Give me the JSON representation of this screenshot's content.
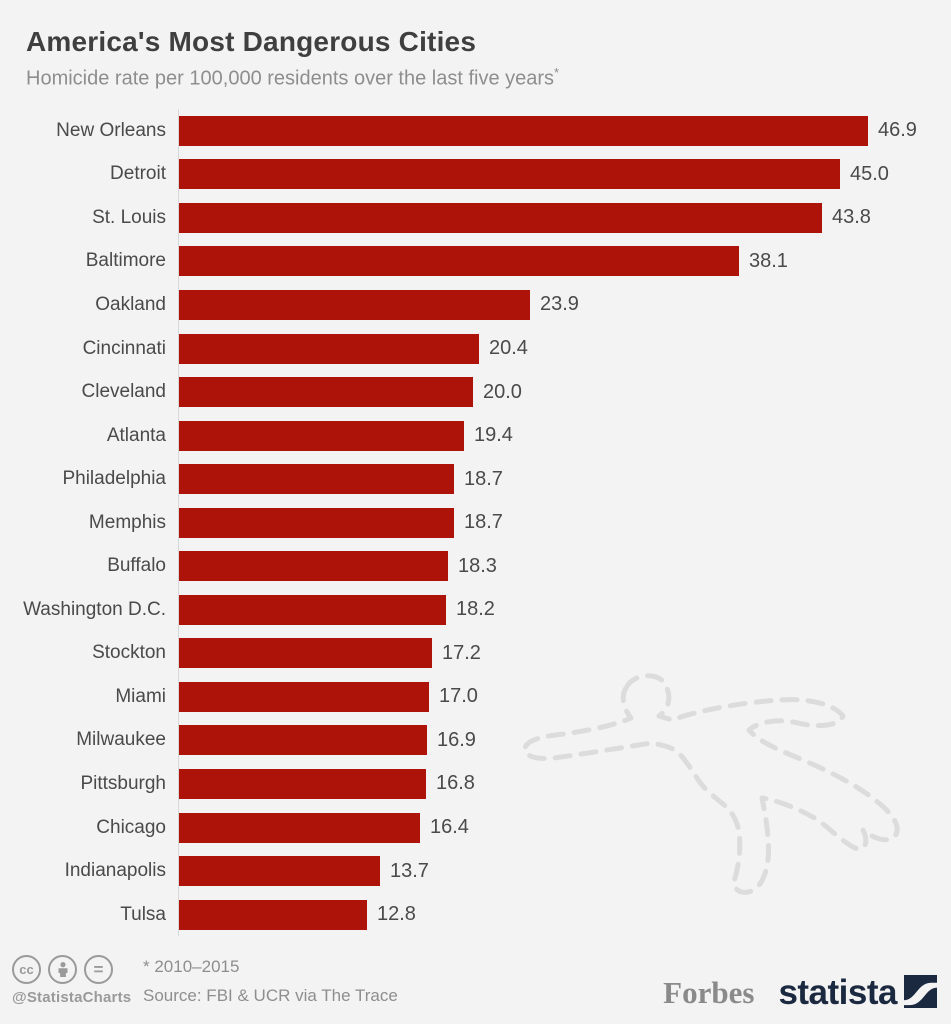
{
  "page": {
    "background": "#f4f3f3"
  },
  "header": {
    "title": "America's Most Dangerous Cities",
    "subtitle": "Homicide rate per 100,000 residents over the last five years",
    "footnote_marker": "*"
  },
  "chart_data": {
    "type": "bar",
    "orientation": "horizontal",
    "title": "America's Most Dangerous Cities",
    "subtitle": "Homicide rate per 100,000 residents over the last five years*",
    "categories": [
      "New Orleans",
      "Detroit",
      "St. Louis",
      "Baltimore",
      "Oakland",
      "Cincinnati",
      "Cleveland",
      "Atlanta",
      "Philadelphia",
      "Memphis",
      "Buffalo",
      "Washington D.C.",
      "Stockton",
      "Miami",
      "Milwaukee",
      "Pittsburgh",
      "Chicago",
      "Indianapolis",
      "Tulsa"
    ],
    "values": [
      46.9,
      45.0,
      43.8,
      38.1,
      23.9,
      20.4,
      20.0,
      19.4,
      18.7,
      18.7,
      18.3,
      18.2,
      17.2,
      17.0,
      16.9,
      16.8,
      16.4,
      13.7,
      12.8
    ],
    "xlim": [
      0,
      50
    ],
    "grid": false,
    "legend": false,
    "value_labels": true,
    "bar_color": "#ae1309",
    "axis_line_color": "#d8d8d8",
    "label_color": "#4a4a4a"
  },
  "decoration": {
    "name": "chalk-body-outline",
    "color": "#dcdcdc"
  },
  "footer": {
    "license_icons": [
      "cc-icon",
      "attribution-person-icon",
      "no-derivatives-icon"
    ],
    "cc_label": "cc",
    "equals_label": "=",
    "handle": "@StatistaCharts",
    "footnote": "* 2010–2015",
    "source": "Source: FBI & UCR via The Trace",
    "brand_forbes": "Forbes",
    "brand_statista": "statista",
    "statista_color": "#1b2940"
  }
}
